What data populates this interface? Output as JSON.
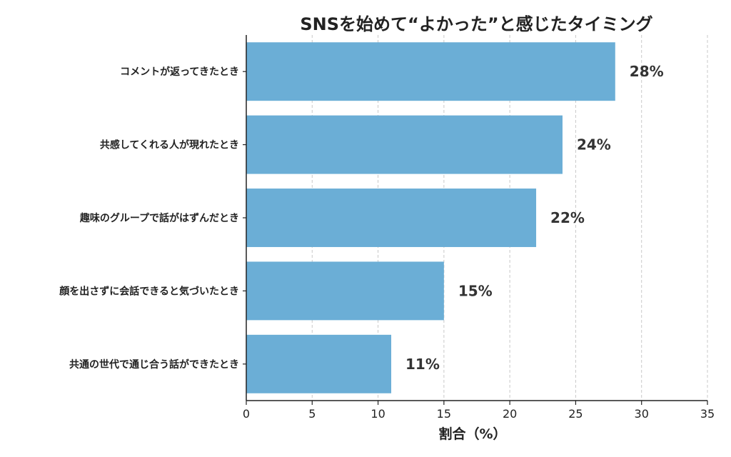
{
  "chart_data": {
    "type": "bar",
    "orientation": "horizontal",
    "title": "SNSを始めて“よかった”と感じたタイミング",
    "xlabel": "割合（%）",
    "ylabel": "",
    "categories": [
      "コメントが返ってきたとき",
      "共感してくれる人が現れたとき",
      "趣味のグループで話がはずんだとき",
      "顔を出さずに会話できると気づいたとき",
      "共通の世代で通じ合う話ができたとき"
    ],
    "values": [
      28,
      24,
      22,
      15,
      11
    ],
    "value_labels": [
      "28%",
      "24%",
      "22%",
      "15%",
      "11%"
    ],
    "xlim": [
      0,
      35
    ],
    "xticks": [
      0,
      5,
      10,
      15,
      20,
      25,
      30,
      35
    ],
    "grid": true,
    "bar_color": "#6baed6",
    "grid_color": "#c8c8c8"
  }
}
